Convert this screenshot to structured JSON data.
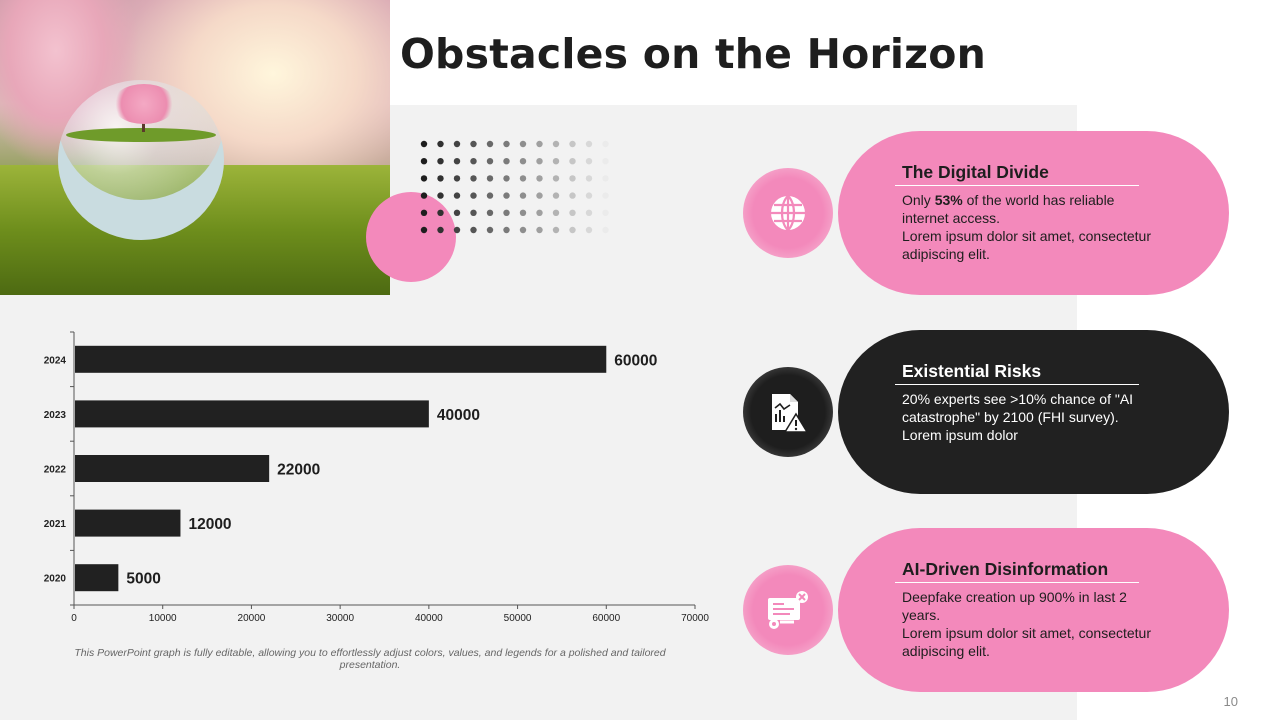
{
  "slide": {
    "title": "Obstacles on the Horizon",
    "page_number": "10",
    "caption": "This PowerPoint graph is fully editable, allowing you to effortlessly adjust colors, values, and legends for a polished and tailored presentation."
  },
  "colors": {
    "accent_pink": "#f389bb",
    "dark": "#212121",
    "panel_gray": "#f2f2f2",
    "bar": "#212121"
  },
  "cards": [
    {
      "title": "The Digital Divide",
      "text_before": "Only ",
      "text_bold": "53%",
      "text_after": " of the world has reliable internet access.",
      "text_extra": "Lorem ipsum dolor sit amet, consectetur adipiscing elit.",
      "icon": "globe-icon",
      "style": "pink"
    },
    {
      "title": "Existential Risks",
      "text": "20% experts see >10% chance of \"AI catastrophe\" by 2100 (FHI survey).",
      "text_extra": "Lorem ipsum dolor",
      "icon": "risk-report-icon",
      "style": "dark"
    },
    {
      "title": "AI-Driven Disinformation",
      "text": "Deepfake creation up 900% in last 2 years.",
      "text_extra": "Lorem ipsum dolor sit amet, consectetur adipiscing elit.",
      "icon": "fake-news-icon",
      "style": "pink"
    }
  ],
  "chart_data": {
    "type": "bar",
    "orientation": "horizontal",
    "categories": [
      "2020",
      "2021",
      "2022",
      "2023",
      "2024"
    ],
    "values": [
      5000,
      12000,
      22000,
      40000,
      60000
    ],
    "data_labels": [
      "5000",
      "12000",
      "22000",
      "40000",
      "60000"
    ],
    "xlim": [
      0,
      70000
    ],
    "x_ticks": [
      "0",
      "10000",
      "20000",
      "30000",
      "40000",
      "50000",
      "60000",
      "70000"
    ],
    "grid": false,
    "legend": "none"
  }
}
